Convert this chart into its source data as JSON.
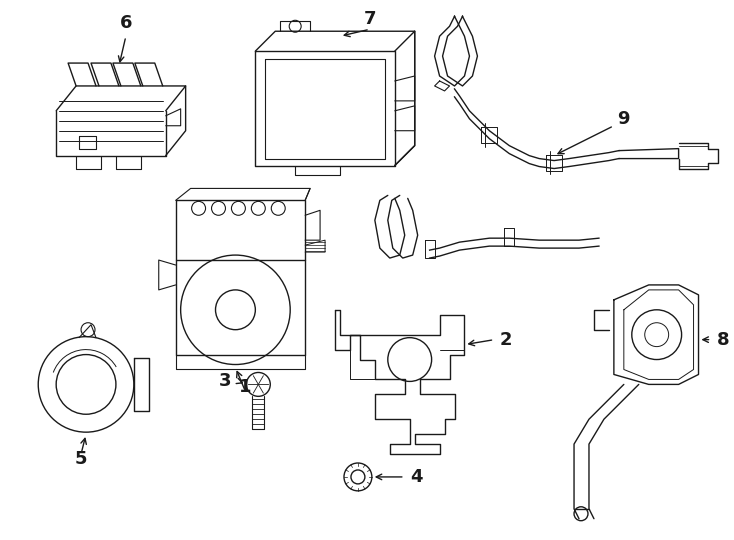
{
  "background_color": "#ffffff",
  "line_color": "#1a1a1a",
  "line_width": 1.0,
  "label_fontsize": 12,
  "label_color": "#000000",
  "fig_width": 7.34,
  "fig_height": 5.4,
  "dpi": 100
}
